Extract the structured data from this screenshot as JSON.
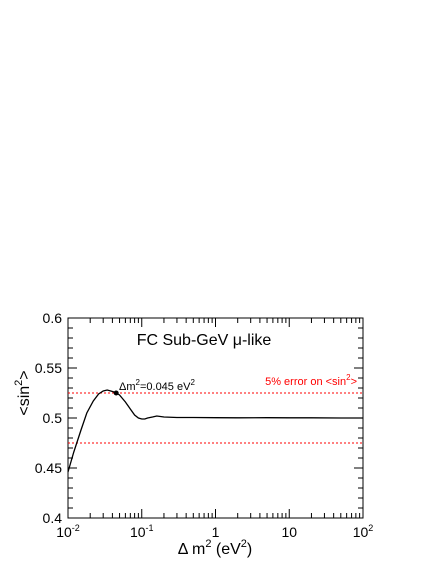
{
  "chart_data": {
    "type": "line",
    "title": "FC Sub-GeV μ-like",
    "xlabel": "Δ m² (eV²)",
    "ylabel": "<sin²>",
    "x_scale": "log",
    "xlim": [
      0.01,
      100
    ],
    "ylim": [
      0.4,
      0.6
    ],
    "x_ticks": [
      {
        "value": 0.01,
        "base": "10",
        "exp": "-2"
      },
      {
        "value": 0.1,
        "base": "10",
        "exp": "-1"
      },
      {
        "value": 1,
        "base": "1",
        "exp": ""
      },
      {
        "value": 10,
        "base": "10",
        "exp": ""
      },
      {
        "value": 100,
        "base": "10",
        "exp": "2"
      }
    ],
    "y_ticks": [
      "0.4",
      "0.45",
      "0.5",
      "0.55",
      "0.6"
    ],
    "series": [
      {
        "x": [
          0.01,
          0.012,
          0.015,
          0.018,
          0.022,
          0.026,
          0.03,
          0.034,
          0.038,
          0.042,
          0.045,
          0.05,
          0.06,
          0.07,
          0.08,
          0.09,
          0.1,
          0.11,
          0.12,
          0.14,
          0.16,
          0.2,
          0.3,
          0.5,
          1,
          2,
          5,
          10,
          20,
          50,
          100
        ],
        "y": [
          0.446,
          0.466,
          0.488,
          0.505,
          0.517,
          0.524,
          0.527,
          0.528,
          0.527,
          0.526,
          0.525,
          0.523,
          0.516,
          0.509,
          0.503,
          0.5,
          0.499,
          0.499,
          0.5,
          0.501,
          0.502,
          0.501,
          0.5005,
          0.5005,
          0.5003,
          0.5002,
          0.5003,
          0.5002,
          0.5002,
          0.5,
          0.5
        ],
        "color": "#000000"
      }
    ],
    "reference_lines": [
      {
        "y": 0.525,
        "color": "#ff0000",
        "style": "dotted"
      },
      {
        "y": 0.475,
        "color": "#ff0000",
        "style": "dotted"
      }
    ],
    "marker": {
      "x": 0.045,
      "y": 0.525,
      "label": "Δm²=0.045 eV²"
    },
    "annotation": {
      "text": "5% error on <sin²>",
      "color": "#ff0000"
    }
  }
}
